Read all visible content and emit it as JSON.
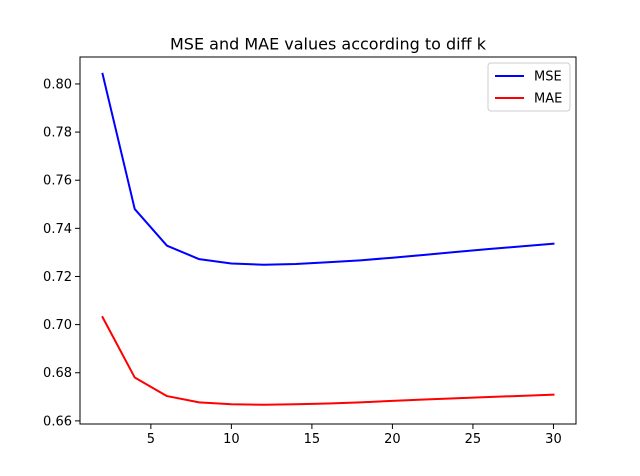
{
  "chart_data": {
    "type": "line",
    "title": "MSE and MAE values according to diff k",
    "xlabel": "",
    "ylabel": "",
    "xlim": [
      0.6,
      31.4
    ],
    "ylim": [
      0.6587,
      0.8112
    ],
    "x_ticks": [
      5,
      10,
      15,
      20,
      25,
      30
    ],
    "x_tick_labels": [
      "5",
      "10",
      "15",
      "20",
      "25",
      "30"
    ],
    "y_ticks": [
      0.66,
      0.68,
      0.7,
      0.72,
      0.74,
      0.76,
      0.78,
      0.8
    ],
    "y_tick_labels": [
      "0.66",
      "0.68",
      "0.70",
      "0.72",
      "0.74",
      "0.76",
      "0.78",
      "0.80"
    ],
    "grid": false,
    "legend_position": "top-right",
    "x": [
      2,
      4,
      6,
      8,
      10,
      12,
      14,
      16,
      18,
      20,
      22,
      24,
      26,
      28,
      30
    ],
    "series": [
      {
        "name": "MSE",
        "color": "#0000ff",
        "values": [
          0.8042,
          0.748,
          0.7328,
          0.7272,
          0.7254,
          0.7249,
          0.7252,
          0.7259,
          0.7267,
          0.7278,
          0.729,
          0.7302,
          0.7314,
          0.7325,
          0.7336
        ]
      },
      {
        "name": "MAE",
        "color": "#ff0000",
        "values": [
          0.7031,
          0.678,
          0.6703,
          0.6677,
          0.6669,
          0.6667,
          0.6669,
          0.6672,
          0.6677,
          0.6683,
          0.6689,
          0.6694,
          0.6699,
          0.6704,
          0.6709
        ]
      }
    ]
  }
}
